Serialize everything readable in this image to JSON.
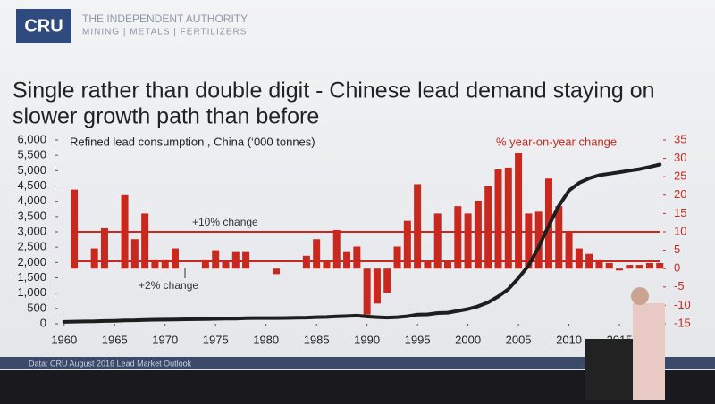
{
  "header": {
    "logo": "CRU",
    "tagline": "THE INDEPENDENT AUTHORITY",
    "sectors": "MINING | METALS | FERTILIZERS"
  },
  "chart_data": {
    "type": "combo",
    "title": [
      "Single rather than double digit - Chinese lead demand staying on",
      "slower growth path than before"
    ],
    "source": "Data: CRU August 2016 Lead Market Outlook",
    "x": [
      1960,
      1961,
      1962,
      1963,
      1964,
      1965,
      1966,
      1967,
      1968,
      1969,
      1970,
      1971,
      1972,
      1973,
      1974,
      1975,
      1976,
      1977,
      1978,
      1979,
      1980,
      1981,
      1982,
      1983,
      1984,
      1985,
      1986,
      1987,
      1988,
      1989,
      1990,
      1991,
      1992,
      1993,
      1994,
      1995,
      1996,
      1997,
      1998,
      1999,
      2000,
      2001,
      2002,
      2003,
      2004,
      2005,
      2006,
      2007,
      2008,
      2009,
      2010,
      2011,
      2012,
      2013,
      2014,
      2015,
      2016,
      2017,
      2018,
      2019
    ],
    "series": [
      {
        "name": "% year-on-year  change",
        "type": "bar",
        "axis": "y2",
        "color": "#c8281e",
        "values": [
          0,
          21.5,
          0,
          5.5,
          11,
          0,
          20,
          8,
          15,
          2.5,
          2.5,
          5.5,
          0,
          0,
          2.5,
          5,
          2,
          4.5,
          4.5,
          0,
          0,
          -1.5,
          0,
          0,
          3.5,
          8,
          2,
          10.5,
          4.5,
          6,
          -12.5,
          -9.5,
          -6.5,
          6,
          13,
          23,
          2,
          15,
          2,
          17,
          15,
          18.5,
          22.5,
          27,
          27.5,
          31.5,
          15,
          15.5,
          24.5,
          17,
          10,
          5.5,
          4,
          2.5,
          1.5,
          -0.5,
          1,
          1,
          1.5,
          1.5
        ]
      },
      {
        "name": "Refined lead consumption , China (‘000 tonnes)",
        "type": "line",
        "color": "#1e1e1e",
        "values": [
          60,
          70,
          75,
          80,
          90,
          95,
          110,
          115,
          125,
          130,
          135,
          140,
          145,
          150,
          155,
          160,
          165,
          170,
          180,
          185,
          185,
          185,
          190,
          195,
          200,
          215,
          220,
          240,
          250,
          265,
          235,
          215,
          200,
          215,
          245,
          300,
          305,
          350,
          360,
          420,
          480,
          570,
          700,
          890,
          1130,
          1490,
          1900,
          2500,
          3200,
          3850,
          4350,
          4600,
          4750,
          4850,
          4900,
          4950,
          5000,
          5050,
          5120,
          5200
        ]
      }
    ],
    "reference_lines": [
      {
        "value": 10,
        "label": "+10% change"
      },
      {
        "value": 2,
        "label": "+2% change"
      }
    ],
    "xlim": [
      1959.4,
      2019.6
    ],
    "xticks": [
      1960,
      1965,
      1970,
      1975,
      1980,
      1985,
      1990,
      1995,
      2000,
      2005,
      2010,
      2015
    ],
    "ylim": [
      0,
      6000
    ],
    "yticks": [
      0,
      500,
      {
        "value": 1000,
        "label": "1,000"
      },
      {
        "value": 1500,
        "label": "1,500"
      },
      {
        "value": 2000,
        "label": "2,000"
      },
      {
        "value": 2500,
        "label": "2,500"
      },
      {
        "value": 3000,
        "label": "3,000"
      },
      {
        "value": 3500,
        "label": "3,500"
      },
      {
        "value": 4000,
        "label": "4,000"
      },
      {
        "value": 4500,
        "label": "4,500"
      },
      {
        "value": 5000,
        "label": "5,000"
      },
      {
        "value": 5500,
        "label": "5,500"
      },
      {
        "value": 6000,
        "label": "6,000"
      }
    ],
    "y2lim": [
      -15,
      35
    ],
    "y2ticks": [
      -15,
      -10,
      -5,
      0,
      5,
      10,
      15,
      20,
      25,
      30,
      35
    ]
  }
}
